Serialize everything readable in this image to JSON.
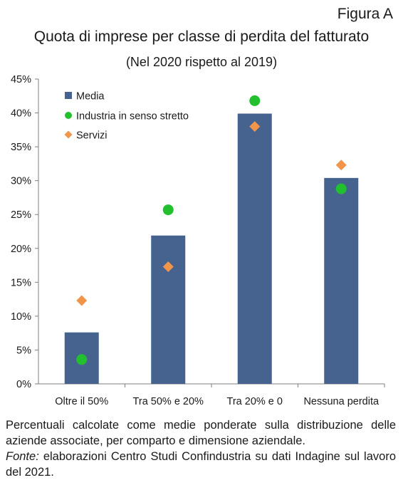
{
  "figure_label": "Figura A",
  "chart_data": {
    "type": "bar",
    "title": "Quota di imprese per classe di perdita del fatturato",
    "subtitle": "(Nel 2020 rispetto al 2019)",
    "categories": [
      "Oltre il 50%",
      "Tra 50% e 20%",
      "Tra 20% e 0",
      "Nessuna perdita"
    ],
    "series": [
      {
        "name": "Media",
        "kind": "bar",
        "color": "#46628f",
        "values": [
          7.6,
          21.9,
          39.9,
          30.4
        ]
      },
      {
        "name": "Industria in senso stretto",
        "kind": "marker-circle",
        "color": "#22c02e",
        "values": [
          3.6,
          25.7,
          41.8,
          28.8
        ]
      },
      {
        "name": "Servizi",
        "kind": "marker-diamond",
        "color": "#f0954a",
        "values": [
          12.3,
          17.3,
          38.0,
          32.3
        ]
      }
    ],
    "ylim": [
      0,
      45
    ],
    "yticks": [
      "0%",
      "5%",
      "10%",
      "15%",
      "20%",
      "25%",
      "30%",
      "35%",
      "40%",
      "45%"
    ],
    "xlabel": "",
    "ylabel": "",
    "grid": false,
    "legend_position": "top-left"
  },
  "note": {
    "line1": "Percentuali calcolate come medie ponderate sulla distribuzione delle aziende associate, per comparto e dimensione aziendale.",
    "fonte_label": "Fonte:",
    "fonte_text": " elaborazioni Centro Studi Confindustria su dati Indagine sul lavoro del 2021."
  }
}
